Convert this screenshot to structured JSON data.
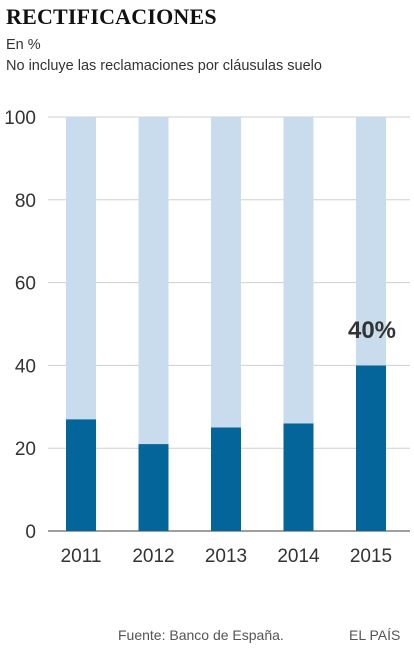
{
  "header": {
    "title": "RECTIFICACIONES",
    "subtitle_1": "En %",
    "subtitle_2": "No incluye las reclamaciones por cláusulas suelo"
  },
  "chart_data": {
    "type": "bar",
    "stacked": true,
    "categories": [
      "2011",
      "2012",
      "2013",
      "2014",
      "2015"
    ],
    "series": [
      {
        "values": [
          27,
          21,
          25,
          26,
          40
        ],
        "color": "#04659a"
      },
      {
        "values": [
          73,
          79,
          75,
          74,
          60
        ],
        "color": "#c9dced"
      }
    ],
    "ylim": [
      0,
      100
    ],
    "yticks": [
      0,
      20,
      40,
      60,
      80,
      100
    ],
    "grid": true,
    "annotations": [
      {
        "category": "2015",
        "text": "40%"
      }
    ]
  },
  "footer": {
    "source": "Fuente: Banco de España.",
    "brand": "EL PAÍS"
  }
}
